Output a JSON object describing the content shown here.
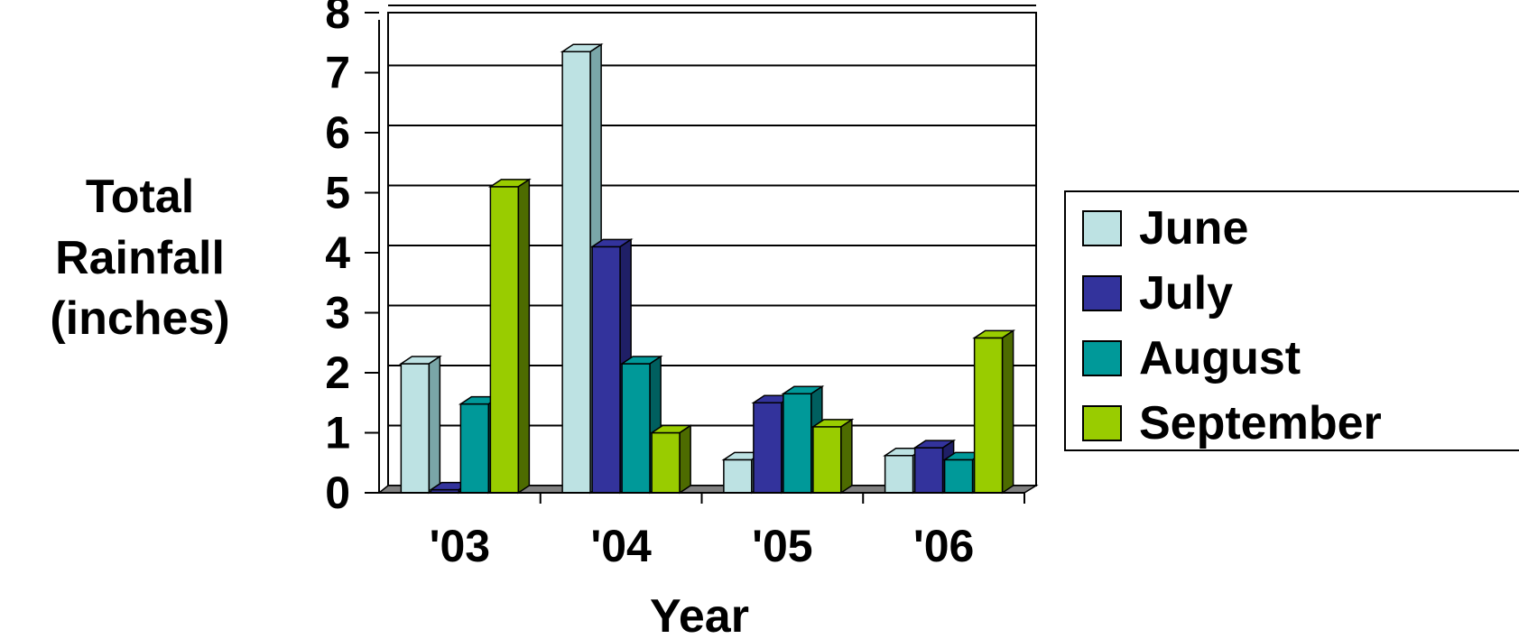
{
  "chart_data": {
    "type": "bar",
    "style": "3d-clustered-column",
    "categories": [
      "'03",
      "'04",
      "'05",
      "'06"
    ],
    "series": [
      {
        "name": "June",
        "values": [
          2.15,
          7.35,
          0.55,
          0.62
        ],
        "color": "#bde2e3",
        "side": "#7aa6a8"
      },
      {
        "name": "July",
        "values": [
          0.05,
          4.1,
          1.5,
          0.75
        ],
        "color": "#33339c",
        "side": "#1f1f66"
      },
      {
        "name": "August",
        "values": [
          1.48,
          2.15,
          1.65,
          0.55
        ],
        "color": "#009999",
        "side": "#005f5f"
      },
      {
        "name": "September",
        "values": [
          5.1,
          1.0,
          1.1,
          2.58
        ],
        "color": "#99cc00",
        "side": "#4d6b00"
      }
    ],
    "xlabel": "Year",
    "ylabel_lines": [
      "Total",
      "Rainfall",
      "(inches)"
    ],
    "ylim": [
      0,
      8
    ],
    "yticks": [
      "0",
      "1",
      "2",
      "3",
      "4",
      "5",
      "6",
      "7",
      "8"
    ],
    "grid": true,
    "legend_position": "right"
  }
}
